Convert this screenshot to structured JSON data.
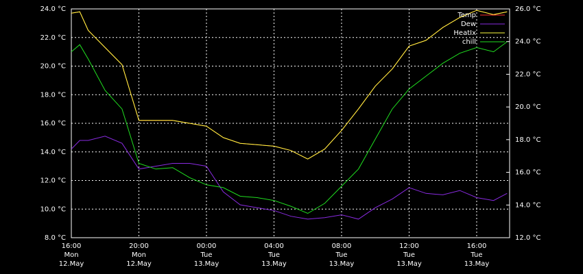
{
  "chart_data": {
    "type": "line",
    "x": [
      0,
      0.5,
      1,
      2,
      3,
      4,
      5,
      6,
      7,
      8,
      9,
      10,
      11,
      12,
      13,
      14,
      15,
      16,
      17,
      18,
      19,
      20,
      21,
      22,
      23,
      24,
      25,
      25.8
    ],
    "xlim": [
      0,
      25.95
    ],
    "xticks": [
      {
        "value": 0,
        "label": "16:00"
      },
      {
        "value": 4,
        "label": "20:00"
      },
      {
        "value": 8,
        "label": "00:00"
      },
      {
        "value": 12,
        "label": "04:00"
      },
      {
        "value": 16,
        "label": "08:00"
      },
      {
        "value": 20,
        "label": "12:00"
      },
      {
        "value": 24,
        "label": "16:00"
      }
    ],
    "xtick_weekdays": [
      "Mon",
      "Mon",
      "Tue",
      "Tue",
      "Tue",
      "Tue",
      "Tue"
    ],
    "xtick_dates": [
      "12.May",
      "12.May",
      "13.May",
      "13.May",
      "13.May",
      "13.May",
      "13.May"
    ],
    "ylim": [
      8,
      24
    ],
    "yticks": [
      {
        "value": 8,
        "label": "8.0 °C"
      },
      {
        "value": 10,
        "label": "10.0 °C"
      },
      {
        "value": 12,
        "label": "12.0 °C"
      },
      {
        "value": 14,
        "label": "14.0 °C"
      },
      {
        "value": 16,
        "label": "16.0 °C"
      },
      {
        "value": 18,
        "label": "18.0 °C"
      },
      {
        "value": 20,
        "label": "20.0 °C"
      },
      {
        "value": 22,
        "label": "22.0 °C"
      },
      {
        "value": 24,
        "label": "24.0 °C"
      }
    ],
    "y2lim": [
      12,
      26
    ],
    "y2ticks": [
      {
        "value": 12,
        "label": "12.0 °C"
      },
      {
        "value": 14,
        "label": "14.0 °C"
      },
      {
        "value": 16,
        "label": "16.0 °C"
      },
      {
        "value": 18,
        "label": "18.0 °C"
      },
      {
        "value": 20,
        "label": "20.0 °C"
      },
      {
        "value": 22,
        "label": "22.0 °C"
      },
      {
        "value": 24,
        "label": "24.0 °C"
      },
      {
        "value": 26,
        "label": "26.0 °C"
      }
    ],
    "grid": true,
    "legend": "top-right",
    "series": [
      {
        "name": "Temp",
        "color": "#ff3030",
        "values": [
          23.7,
          23.8,
          22.5,
          21.3,
          20.1,
          16.2,
          16.2,
          16.2,
          16.0,
          15.8,
          15.0,
          14.6,
          14.5,
          14.4,
          14.1,
          13.5,
          14.2,
          15.5,
          17.0,
          18.6,
          19.8,
          21.4,
          21.8,
          22.7,
          23.4,
          23.9,
          23.6,
          23.8
        ]
      },
      {
        "name": "Dew",
        "color": "#8a2be2",
        "values": [
          14.2,
          14.8,
          14.8,
          15.1,
          14.6,
          12.8,
          13.0,
          13.2,
          13.2,
          13.0,
          11.2,
          10.3,
          10.1,
          9.9,
          9.5,
          9.3,
          9.4,
          9.6,
          9.3,
          10.1,
          10.7,
          11.5,
          11.1,
          11.0,
          11.3,
          10.8,
          10.6,
          11.1
        ]
      },
      {
        "name": "HeatIx",
        "color": "#ffff40",
        "values": [
          23.7,
          23.8,
          22.5,
          21.3,
          20.1,
          16.2,
          16.2,
          16.2,
          16.0,
          15.8,
          15.0,
          14.6,
          14.5,
          14.4,
          14.1,
          13.5,
          14.2,
          15.5,
          17.0,
          18.6,
          19.8,
          21.4,
          21.8,
          22.7,
          23.4,
          23.9,
          23.6,
          23.8
        ]
      },
      {
        "name": "chill",
        "color": "#20e020",
        "values": [
          21.0,
          21.5,
          20.5,
          18.3,
          17.0,
          13.2,
          12.8,
          12.9,
          12.2,
          11.7,
          11.5,
          10.9,
          10.8,
          10.6,
          10.2,
          9.7,
          10.4,
          11.6,
          12.8,
          14.9,
          17.0,
          18.4,
          19.3,
          20.2,
          20.9,
          21.3,
          21.0,
          21.7
        ]
      }
    ]
  }
}
